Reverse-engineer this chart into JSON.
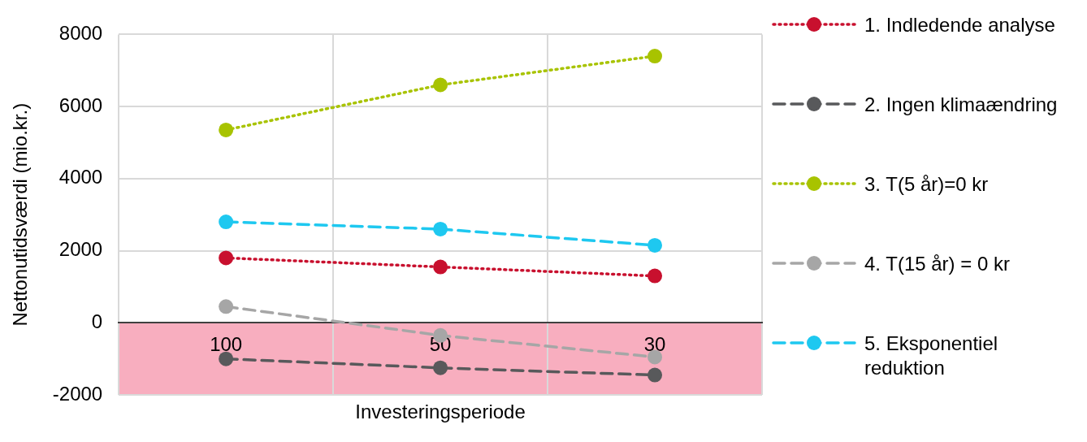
{
  "chart_data": {
    "type": "line",
    "xlabel": "Investeringsperiode",
    "ylabel": "Nettonutidsværdi (mio.kr.)",
    "categories": [
      "100",
      "50",
      "30"
    ],
    "series": [
      {
        "name": "1. Indledende analyse",
        "color": "#c8102e",
        "values": [
          1800,
          1550,
          1300
        ],
        "line_style": "dotted"
      },
      {
        "name": "2. Ingen klimaændring",
        "color": "#58595b",
        "values": [
          -1000,
          -1250,
          -1450
        ],
        "line_style": "dashed"
      },
      {
        "name": "3. T(5 år)=0 kr",
        "color": "#a8c300",
        "values": [
          5350,
          6600,
          7400
        ],
        "line_style": "dotted"
      },
      {
        "name": "4. T(15 år) = 0 kr",
        "color": "#a6a6a6",
        "values": [
          450,
          -350,
          -950
        ],
        "line_style": "dashed"
      },
      {
        "name": "5. Eksponentiel reduktion",
        "color": "#1ec8f0",
        "values": [
          2800,
          2600,
          2150
        ],
        "line_style": "dashed"
      }
    ],
    "ylim": [
      -2000,
      8000
    ],
    "yticks": [
      -2000,
      0,
      2000,
      4000,
      6000,
      8000
    ],
    "bands": [
      {
        "axis": "y",
        "from": -2000,
        "to": 0,
        "color": "#f8aebf"
      }
    ],
    "grid": true,
    "legend": "right",
    "marker": "circle"
  }
}
